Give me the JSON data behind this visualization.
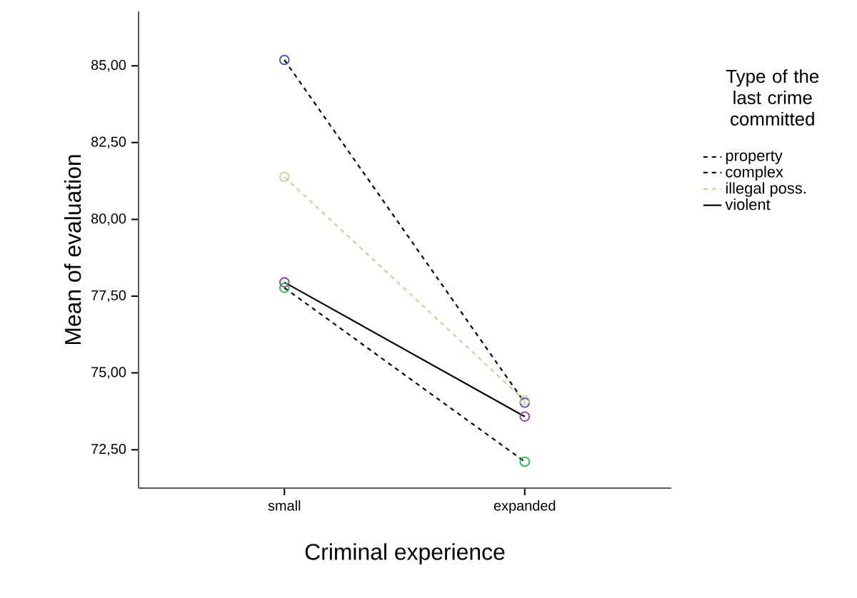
{
  "chart_data": {
    "type": "line",
    "xlabel": "Criminal experience",
    "ylabel": "Mean of evaluation",
    "legend_title": "Type of the last crime committed",
    "categories": [
      "small",
      "expanded"
    ],
    "series": [
      {
        "name": "property",
        "color": "#000000",
        "colors": [
          "#3f55b5",
          "#3f55b5"
        ],
        "line_style": "dashed",
        "values": [
          85.19,
          74.03
        ]
      },
      {
        "name": "complex",
        "color": "#000000",
        "colors": [
          "#2db84a",
          "#2db84a"
        ],
        "line_style": "dashed",
        "values": [
          77.77,
          72.11
        ]
      },
      {
        "name": "illegal poss.",
        "color": "#d4cc9e",
        "colors": [
          "#d4cc9e",
          "#d4cc9e"
        ],
        "line_style": "dashed",
        "values": [
          81.38,
          74.1
        ]
      },
      {
        "name": "violent",
        "color": "#000000",
        "colors": [
          "#8e3a9a",
          "#8e3a9a"
        ],
        "line_style": "solid",
        "values": [
          77.95,
          73.58
        ]
      }
    ],
    "ylim": [
      71.25,
      86.77
    ],
    "yticks": [
      {
        "value": 72.5,
        "label": "72,50"
      },
      {
        "value": 75,
        "label": "75,00"
      },
      {
        "value": 77.5,
        "label": "77,50"
      },
      {
        "value": 80,
        "label": "80,00"
      },
      {
        "value": 82.5,
        "label": "82,50"
      },
      {
        "value": 85,
        "label": "85,00"
      }
    ],
    "marker": "circle",
    "legend": "right",
    "grid": false
  }
}
